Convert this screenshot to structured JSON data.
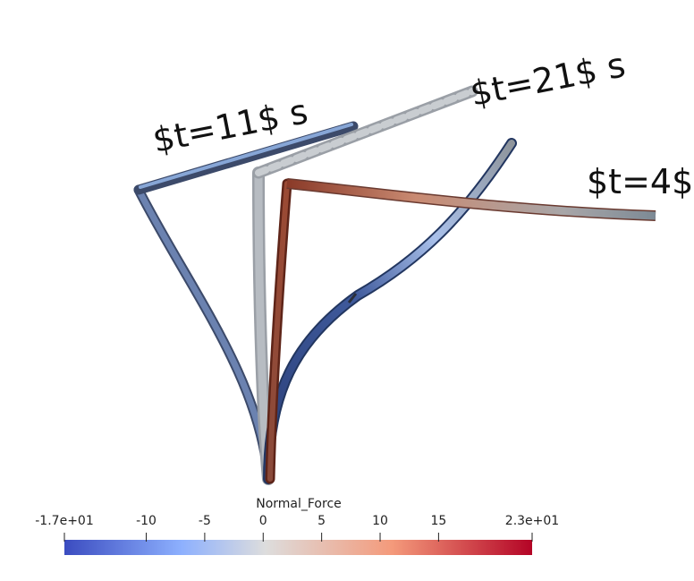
{
  "labels": {
    "t11": "$t=11$ s",
    "t21": "$t=21$ s",
    "t4": "$t=4$"
  },
  "colorbar": {
    "title": "Normal_Force",
    "min": -17,
    "max": 23,
    "ticks": [
      {
        "value": -17,
        "label": "-1.7e+01"
      },
      {
        "value": -10,
        "label": "-10"
      },
      {
        "value": -5,
        "label": "-5"
      },
      {
        "value": 0,
        "label": "0"
      },
      {
        "value": 5,
        "label": "5"
      },
      {
        "value": 10,
        "label": "10"
      },
      {
        "value": 15,
        "label": "15"
      },
      {
        "value": 23,
        "label": "2.3e+01"
      }
    ],
    "colormap": [
      "#3b4cc0",
      "#8db0fe",
      "#dddddd",
      "#f49a7b",
      "#b40426"
    ]
  },
  "beam_colors": {
    "t11_outline": "#3c4a6a",
    "t11_lower": "#6b82b0",
    "t11_upper": "#87a6d6",
    "t21_outline": "#9a9fa6",
    "t21_body": "#b7bcc2",
    "t4_dark": "#7a2e1e",
    "t4_mid": "#c07a62",
    "t4_end": "#7d8a95",
    "t4_lower": "#2e4a86",
    "t4_mid_blue": "#9db4e2"
  }
}
